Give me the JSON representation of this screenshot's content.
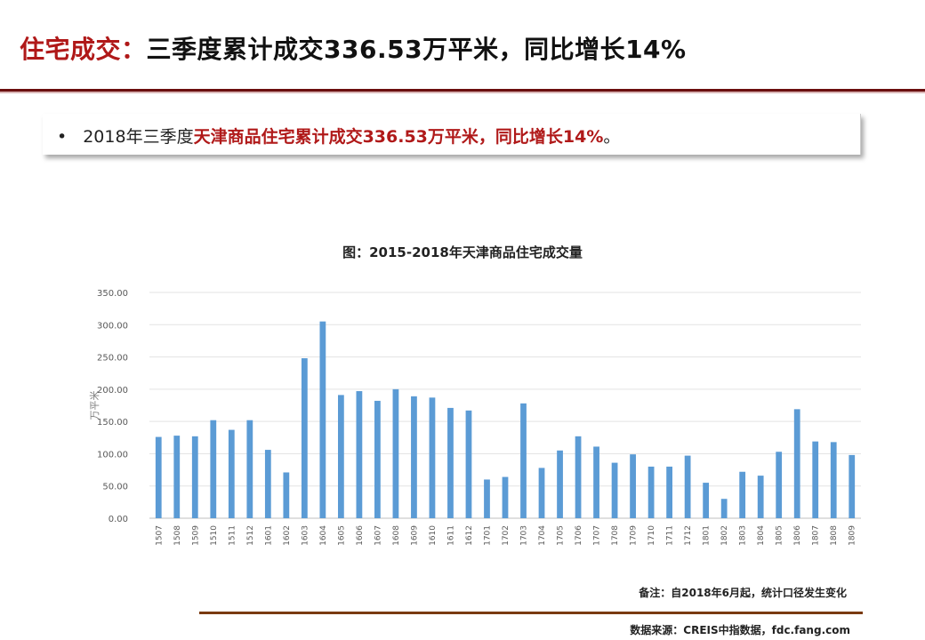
{
  "header": {
    "title_accent": "住宅成交：",
    "title_main": "三季度累计成交336.53万平米，同比增长14%"
  },
  "bullet": {
    "dot": "•",
    "prefix": "2018年三季度",
    "highlight": "天津商品住宅累计成交336.53万平米，同比增长14%",
    "suffix": "。"
  },
  "chart_data": {
    "type": "bar",
    "title": "图：2015-2018年天津商品住宅成交量",
    "ylabel": "万平米",
    "ylim": [
      0,
      350
    ],
    "yticks": [
      "0.00",
      "50.00",
      "100.00",
      "150.00",
      "200.00",
      "250.00",
      "300.00",
      "350.00"
    ],
    "grid": true,
    "bar_color": "#5b9bd5",
    "categories": [
      "1507",
      "1508",
      "1509",
      "1510",
      "1511",
      "1512",
      "1601",
      "1602",
      "1603",
      "1604",
      "1605",
      "1606",
      "1607",
      "1608",
      "1609",
      "1610",
      "1611",
      "1612",
      "1701",
      "1702",
      "1703",
      "1704",
      "1705",
      "1706",
      "1707",
      "1708",
      "1709",
      "1710",
      "1711",
      "1712",
      "1801",
      "1802",
      "1803",
      "1804",
      "1805",
      "1806",
      "1807",
      "1808",
      "1809"
    ],
    "values": [
      126,
      128,
      127,
      152,
      137,
      152,
      106,
      71,
      248,
      305,
      191,
      197,
      182,
      200,
      189,
      187,
      171,
      167,
      60,
      64,
      178,
      78,
      105,
      127,
      111,
      86,
      99,
      80,
      80,
      97,
      55,
      30,
      72,
      66,
      103,
      169,
      119,
      118,
      98
    ]
  },
  "footer": {
    "note": "备注：自2018年6月起，统计口径发生变化",
    "source": "数据来源：CREIS中指数据，fdc.fang.com"
  }
}
